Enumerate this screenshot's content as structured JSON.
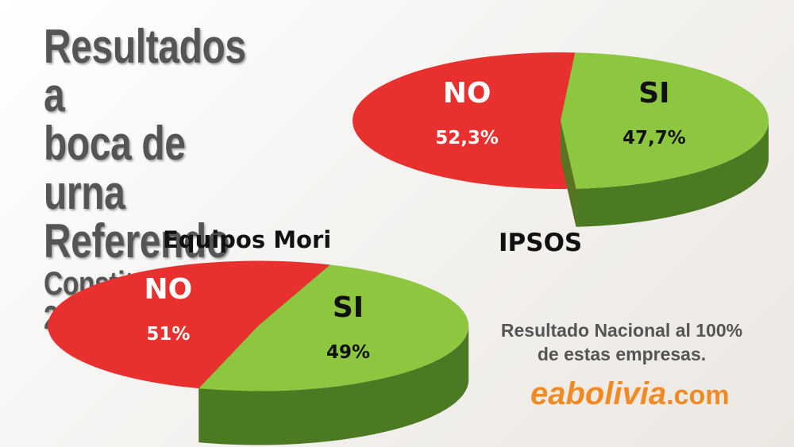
{
  "title": {
    "line1": "Resultados a",
    "line2": "boca de urna",
    "line3": "Referendo",
    "line4": "Constitucional 2016"
  },
  "colors": {
    "no_top": "#e8302f",
    "no_side": "#b7201f",
    "si_top": "#8dc63f",
    "si_side": "#4c7a23",
    "brand": "#f08a24"
  },
  "chart_data": [
    {
      "type": "pie",
      "title": "IPSOS",
      "slices": [
        {
          "label": "NO",
          "value": 52.3,
          "value_label": "52,3%"
        },
        {
          "label": "SI",
          "value": 47.7,
          "value_label": "47,7%"
        }
      ]
    },
    {
      "type": "pie",
      "title": "Equipos Mori",
      "slices": [
        {
          "label": "NO",
          "value": 51,
          "value_label": "51%"
        },
        {
          "label": "SI",
          "value": 49,
          "value_label": "49%"
        }
      ]
    }
  ],
  "footer": {
    "note_line1": "Resultado Nacional al 100%",
    "note_line2": "de estas empresas.",
    "brand_main": "eabolivia",
    "brand_tld": ".com"
  }
}
